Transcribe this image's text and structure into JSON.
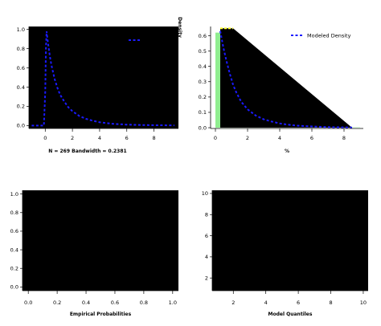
{
  "chart_data": [
    {
      "type": "line",
      "id": "density-kde",
      "xlabel": "",
      "subtitle": "N = 269   Bandwidth = 0.2381",
      "ylabel": "Density",
      "xlim": [
        -1.2,
        9.8
      ],
      "ylim": [
        -0.03,
        1.03
      ],
      "xticks": [
        0,
        2,
        4,
        6,
        8
      ],
      "yticks": [
        0.0,
        0.2,
        0.4,
        0.6,
        0.8,
        1.0
      ],
      "ytick_labels": [
        "0.0",
        "0.2",
        "0.4",
        "0.6",
        "0.8",
        "1.0"
      ],
      "background": "#000000",
      "series": [
        {
          "style": "dashed",
          "color": "#1a1aff",
          "x": [
            -1.0,
            -0.1,
            0.0,
            0.05,
            0.1,
            0.15,
            0.2,
            0.3,
            0.4,
            0.5,
            0.7,
            0.9,
            1.1,
            1.4,
            1.7,
            2.0,
            2.5,
            3.0,
            3.5,
            4.0,
            5.0,
            6.0,
            7.0,
            8.0,
            9.5
          ],
          "y": [
            0.0,
            0.0,
            0.35,
            0.8,
            0.98,
            0.92,
            0.86,
            0.76,
            0.67,
            0.6,
            0.48,
            0.39,
            0.32,
            0.25,
            0.19,
            0.15,
            0.1,
            0.07,
            0.05,
            0.035,
            0.018,
            0.01,
            0.006,
            0.004,
            0.002
          ]
        }
      ],
      "legend": {
        "placement": "top-right",
        "entries": [
          {
            "label": "",
            "style": "dashed",
            "color": "#1a1aff"
          }
        ]
      }
    },
    {
      "type": "area",
      "id": "histogram-density",
      "xlabel": "%",
      "xlim": [
        -0.3,
        9.2
      ],
      "ylim": [
        -0.005,
        0.66
      ],
      "xticks": [
        0,
        2,
        4,
        6,
        8
      ],
      "yticks": [
        0.0,
        0.1,
        0.2,
        0.3,
        0.4,
        0.5,
        0.6
      ],
      "ytick_labels": [
        "0.0",
        "0.1",
        "0.2",
        "0.3",
        "0.4",
        "0.5",
        "0.6"
      ],
      "histogram": {
        "color": "#90ee90",
        "bin_edges": [
          0.0,
          0.5,
          1.0,
          1.5,
          2.0,
          2.5,
          3.0,
          3.5,
          4.0,
          4.5,
          5.0,
          5.5,
          6.0,
          6.5,
          7.0,
          7.5,
          8.0,
          8.5,
          9.0
        ],
        "densities": [
          0.62,
          0.55,
          0.22,
          0.14,
          0.06,
          0.05,
          0.04,
          0.025,
          0.02,
          0.015,
          0.01,
          0.01,
          0.006,
          0.005,
          0.004,
          0.003,
          0.002,
          0.002
        ]
      },
      "polygon": {
        "color": "#000000",
        "outline": "#ffff33",
        "x": [
          0.3,
          1.1,
          8.5,
          8.5,
          0.3
        ],
        "y": [
          0.648,
          0.648,
          0.0,
          0.0,
          0.0
        ]
      },
      "series": [
        {
          "name": "Modeled Density",
          "style": "dashed",
          "color": "#1a1aff",
          "x": [
            0.3,
            0.5,
            0.7,
            0.9,
            1.1,
            1.3,
            1.6,
            2.0,
            2.5,
            3.0,
            3.5,
            4.0,
            4.5,
            5.0,
            6.0,
            7.0,
            8.0,
            8.5
          ],
          "y": [
            0.63,
            0.52,
            0.43,
            0.35,
            0.28,
            0.23,
            0.17,
            0.12,
            0.08,
            0.055,
            0.04,
            0.028,
            0.02,
            0.014,
            0.008,
            0.004,
            0.002,
            0.0015
          ]
        }
      ],
      "legend": {
        "placement": "top-right",
        "entries": [
          {
            "label": "Modeled Density",
            "style": "dashed",
            "color": "#1a1aff"
          }
        ]
      }
    },
    {
      "type": "scatter",
      "id": "pp-plot",
      "xlabel": "Empirical Probabilities",
      "xlim": [
        -0.04,
        1.04
      ],
      "ylim": [
        -0.04,
        1.04
      ],
      "xticks": [
        0.0,
        0.2,
        0.4,
        0.6,
        0.8,
        1.0
      ],
      "xtick_labels": [
        "0.0",
        "0.2",
        "0.4",
        "0.6",
        "0.8",
        "1.0"
      ],
      "yticks": [
        0.0,
        0.2,
        0.4,
        0.6,
        0.8,
        1.0
      ],
      "ytick_labels": [
        "0.0",
        "0.2",
        "0.4",
        "0.6",
        "0.8",
        "1.0"
      ],
      "background": "#000000",
      "series": []
    },
    {
      "type": "scatter",
      "id": "qq-plot",
      "xlabel": "Model Quantiles",
      "xlim": [
        0.7,
        10.3
      ],
      "ylim": [
        0.8,
        10.3
      ],
      "xticks": [
        2,
        4,
        6,
        8,
        10
      ],
      "yticks": [
        2,
        4,
        6,
        8,
        10
      ],
      "background": "#000000",
      "series": []
    }
  ]
}
